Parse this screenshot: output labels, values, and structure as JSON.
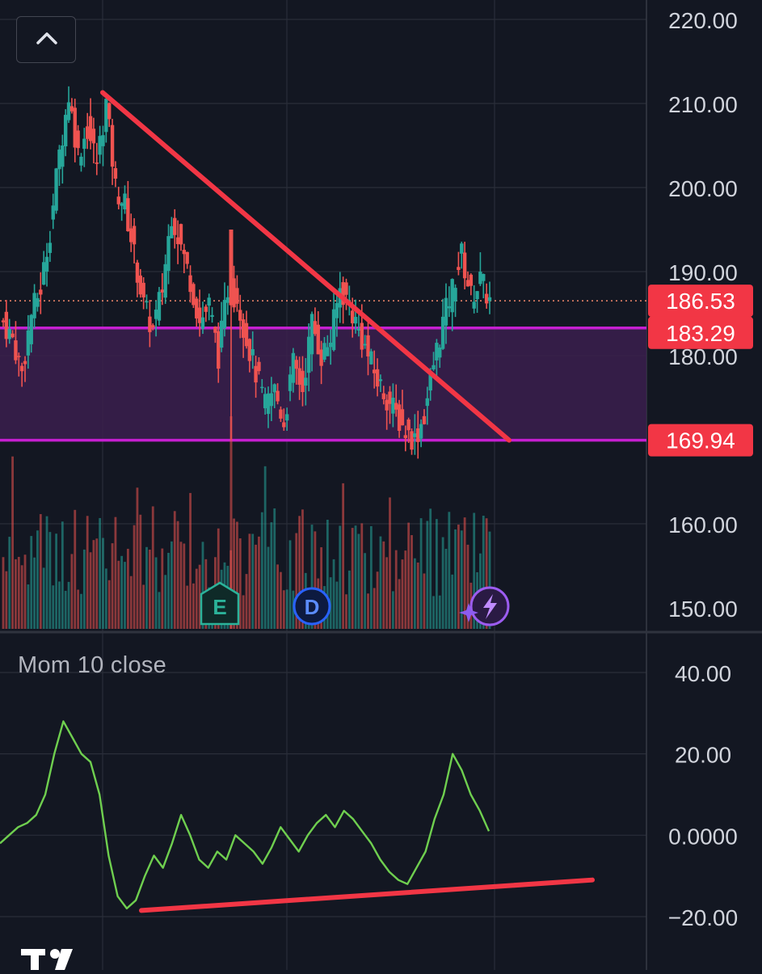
{
  "price_labels": {
    "current": "186.53",
    "upper_band": "183.29",
    "lower_band": "169.94"
  },
  "indicator": {
    "title": "Mom 10 close"
  },
  "markers": {
    "earnings": "E",
    "dividend": "D"
  },
  "colors": {
    "background": "#131722",
    "up_candle": "#26a69a",
    "down_candle": "#ef5350",
    "trendline": "#f23645",
    "band_fill": "#3b1f4e",
    "band_border": "#c51fd0",
    "momentum_line": "#6fcf4f",
    "grid": "#2a2e39",
    "axis_text": "#d1d4dc",
    "label_bg": "#f23645"
  },
  "icons": {
    "collapse": "chevron-up-icon",
    "earnings": "earnings-marker-icon",
    "dividend": "dividend-marker-icon",
    "flash": "flash-marker-icon",
    "logo": "tradingview-logo-icon"
  },
  "chart_data": [
    {
      "type": "candlestick",
      "y_axis_ticks": [
        "220.00",
        "210.00",
        "200.00",
        "190.00",
        "180.00",
        "160.00",
        "150.00"
      ],
      "ylim": [
        148,
        222
      ],
      "grid": true,
      "last_price": 186.53,
      "horizontal_levels": [
        183.29,
        169.94
      ],
      "shaded_zone": [
        169.94,
        183.29
      ],
      "trendline": {
        "from_price": 211.3,
        "to_price": 169.94
      },
      "close_path": [
        184,
        182,
        178,
        185,
        188,
        195,
        204,
        211,
        204,
        207,
        203,
        210,
        200,
        198,
        192,
        186,
        183,
        188,
        197,
        193,
        189,
        184,
        186,
        180,
        188,
        187,
        182,
        178,
        174,
        176,
        172,
        179,
        176,
        184,
        180,
        182,
        188,
        186,
        183,
        180,
        177,
        175,
        173,
        171,
        170,
        173,
        179,
        184,
        188,
        192,
        187,
        189,
        186.53
      ],
      "volume_ticks": "unlabeled"
    },
    {
      "type": "line",
      "title": "Mom 10 close",
      "y_axis_ticks": [
        "40.00",
        "20.00",
        "0.0000",
        "-20.00"
      ],
      "ylim": [
        -25,
        44
      ],
      "values": [
        -2,
        0,
        2,
        3,
        5,
        10,
        20,
        28,
        24,
        20,
        18,
        10,
        -5,
        -15,
        -18,
        -16,
        -10,
        -5,
        -8,
        -2,
        5,
        0,
        -6,
        -8,
        -4,
        -6,
        0,
        -2,
        -4,
        -7,
        -3,
        2,
        -1,
        -4,
        0,
        3,
        5,
        2,
        6,
        4,
        1,
        -2,
        -6,
        -9,
        -11,
        -12,
        -8,
        -4,
        4,
        10,
        20,
        16,
        10,
        6,
        1
      ],
      "trendline": {
        "from_value": -18.5,
        "to_value": -11
      }
    }
  ]
}
